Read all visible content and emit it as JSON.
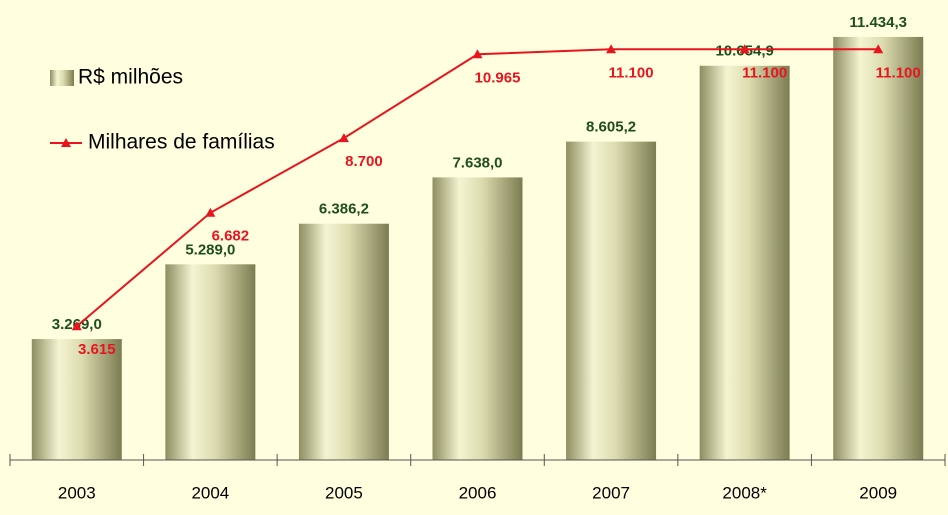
{
  "chart_data": {
    "type": "bar",
    "categories": [
      "2003",
      "2004",
      "2005",
      "2006",
      "2007",
      "2008*",
      "2009"
    ],
    "series": [
      {
        "name": "R$ milhões",
        "type": "bar",
        "color": "#a8a878",
        "values": [
          3269.0,
          5289.0,
          6386.2,
          7638.0,
          8605.2,
          10654.9,
          11434.3
        ],
        "value_labels": [
          "3.269,0",
          "5.289,0",
          "6.386,2",
          "7.638,0",
          "8.605,2",
          "10.654,9",
          "11.434,3"
        ],
        "label_color": "#1e4d1e"
      },
      {
        "name": "Milhares de famílias",
        "type": "line",
        "axis": "y2",
        "color": "#e8141e",
        "values": [
          3615,
          6682,
          8700,
          10965,
          11100,
          11100,
          11100
        ],
        "value_labels": [
          "3.615",
          "6.682",
          "8.700",
          "10.965",
          "11.100",
          "11.100",
          "11.100"
        ],
        "label_color": "#e8141e"
      }
    ],
    "ylim": [
      0,
      12000
    ],
    "y2lim": [
      0,
      12000
    ],
    "legend": "top-left"
  }
}
